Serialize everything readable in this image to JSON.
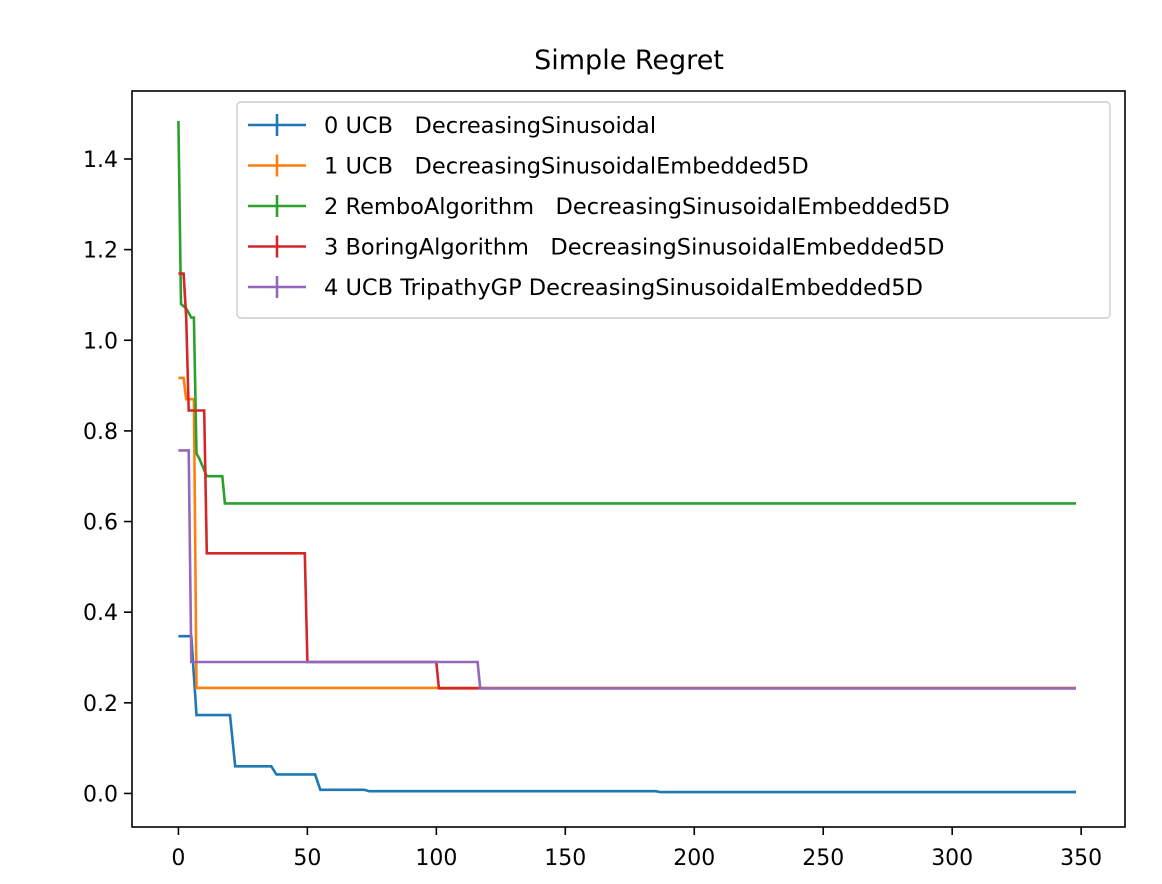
{
  "chart_data": {
    "type": "line",
    "title": "Simple Regret",
    "xlabel": "",
    "ylabel": "",
    "xlim": [
      -18,
      367
    ],
    "ylim": [
      -0.074,
      1.55
    ],
    "xticks": [
      0,
      50,
      100,
      150,
      200,
      250,
      300,
      350
    ],
    "yticks": [
      0.0,
      0.2,
      0.4,
      0.6,
      0.8,
      1.0,
      1.2,
      1.4
    ],
    "xtick_labels": [
      "0",
      "50",
      "100",
      "150",
      "200",
      "250",
      "300",
      "350"
    ],
    "ytick_labels": [
      "0.0",
      "0.2",
      "0.4",
      "0.6",
      "0.8",
      "1.0",
      "1.2",
      "1.4"
    ],
    "grid": false,
    "legend_position": "upper-right",
    "series": [
      {
        "name": "0 UCB   DecreasingSinusoidal",
        "color": "#1f77b4",
        "x": [
          0,
          5,
          7,
          20,
          22,
          36,
          38,
          53,
          55,
          72,
          74,
          185,
          187,
          348
        ],
        "y": [
          0.347,
          0.347,
          0.173,
          0.173,
          0.06,
          0.06,
          0.042,
          0.042,
          0.008,
          0.008,
          0.005,
          0.005,
          0.003,
          0.003
        ]
      },
      {
        "name": "1 UCB   DecreasingSinusoidalEmbedded5D",
        "color": "#ff7f0e",
        "x": [
          0,
          2,
          3,
          6,
          7,
          348
        ],
        "y": [
          0.917,
          0.917,
          0.87,
          0.87,
          0.233,
          0.233
        ]
      },
      {
        "name": "2 RemboAlgorithm   DecreasingSinusoidalEmbedded5D",
        "color": "#2ca02c",
        "x": [
          0,
          1,
          3,
          5,
          6,
          7,
          8,
          11,
          17,
          18,
          348
        ],
        "y": [
          1.484,
          1.08,
          1.07,
          1.05,
          1.05,
          0.75,
          0.74,
          0.7,
          0.7,
          0.64,
          0.64
        ]
      },
      {
        "name": "3 BoringAlgorithm   DecreasingSinusoidalEmbedded5D",
        "color": "#d62728",
        "x": [
          0,
          2,
          3,
          4,
          10,
          11,
          49,
          50,
          100,
          101,
          348
        ],
        "y": [
          1.147,
          1.147,
          1.05,
          0.845,
          0.845,
          0.53,
          0.53,
          0.29,
          0.29,
          0.232,
          0.232
        ]
      },
      {
        "name": "4 UCB TripathyGP DecreasingSinusoidalEmbedded5D",
        "color": "#9467bd",
        "x": [
          0,
          4,
          5,
          116,
          117,
          348
        ],
        "y": [
          0.757,
          0.757,
          0.29,
          0.29,
          0.232,
          0.232
        ]
      }
    ]
  }
}
